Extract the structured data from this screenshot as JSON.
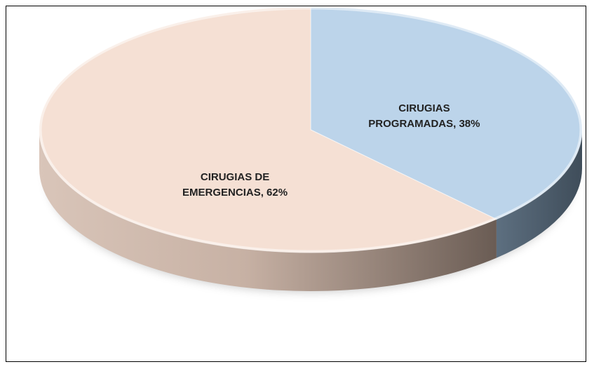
{
  "chart_data": {
    "type": "pie",
    "values": [
      38,
      62
    ],
    "value_labels": [
      "CIRUGIAS PROGRAMADAS, 38%",
      "CIRUGIAS DE EMERGENCIAS, 62%"
    ],
    "colors": [
      "#bcd4ea",
      "#f5e0d4"
    ]
  }
}
